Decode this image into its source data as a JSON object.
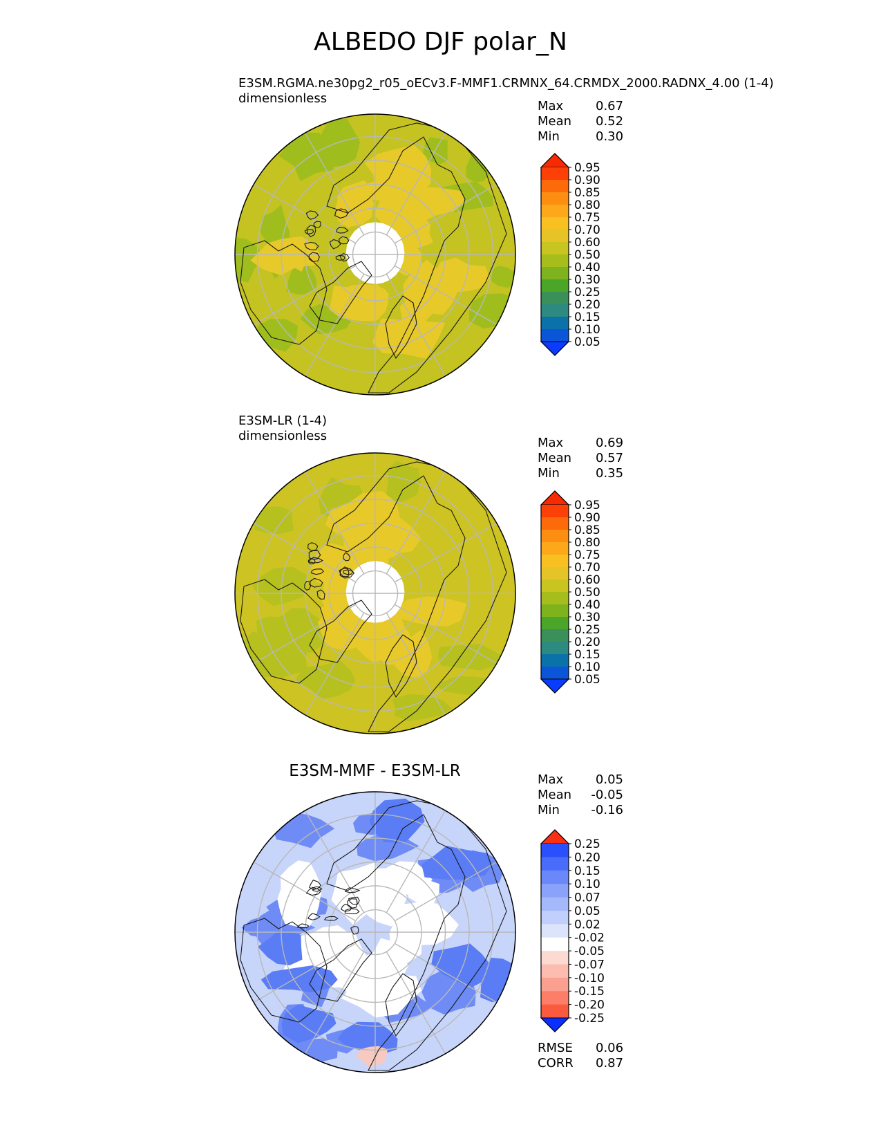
{
  "figure": {
    "title": "ALBEDO DJF polar_N"
  },
  "panels": [
    {
      "id": "test",
      "title_line1": "E3SM.RGMA.ne30pg2_r05_oECv3.F-MMF1.CRMNX_64.CRMDX_2000.RADNX_4.00 (1-4)",
      "title_line2": "dimensionless",
      "stats": {
        "max_label": "Max",
        "max_value": "0.67",
        "mean_label": "Mean",
        "mean_value": "0.52",
        "min_label": "Min",
        "min_value": "0.30"
      }
    },
    {
      "id": "reference",
      "title_line1": "E3SM-LR (1-4)",
      "title_line2": "dimensionless",
      "stats": {
        "max_label": "Max",
        "max_value": "0.69",
        "mean_label": "Mean",
        "mean_value": "0.57",
        "min_label": "Min",
        "min_value": "0.35"
      }
    },
    {
      "id": "difference",
      "title": "E3SM-MMF - E3SM-LR",
      "stats": {
        "max_label": "Max",
        "max_value": "0.05",
        "mean_label": "Mean",
        "mean_value": "-0.05",
        "min_label": "Min",
        "min_value": "-0.16"
      },
      "metrics": {
        "rmse_label": "RMSE",
        "rmse_value": "0.06",
        "corr_label": "CORR",
        "corr_value": "0.87"
      }
    }
  ],
  "chart_data": [
    {
      "type": "heatmap",
      "projection": "north-polar-stereographic",
      "variable": "ALBEDO",
      "units": "dimensionless",
      "season": "DJF",
      "colorbar_levels": [
        "0.05",
        "0.10",
        "0.15",
        "0.20",
        "0.25",
        "0.30",
        "0.40",
        "0.50",
        "0.60",
        "0.70",
        "0.75",
        "0.80",
        "0.85",
        "0.90",
        "0.95"
      ],
      "colorbar_colors": [
        "#0a3cff",
        "#0a55d8",
        "#0a72a8",
        "#2d8a80",
        "#3a9058",
        "#4aa528",
        "#7fb31e",
        "#a7bd1c",
        "#c8c420",
        "#e6c428",
        "#f8c020",
        "#fca81a",
        "#fc8e12",
        "#fc6a0a",
        "#fc4006",
        "#f82a02"
      ],
      "min_color": "#0a3cff",
      "max_color": "#f82a02",
      "field_color_low": "#9fbe1e",
      "field_color_mid": "#c4c321",
      "field_color_high": "#e8c92a"
    },
    {
      "type": "heatmap",
      "projection": "north-polar-stereographic",
      "variable": "ALBEDO",
      "units": "dimensionless",
      "season": "DJF",
      "colorbar_levels": [
        "0.05",
        "0.10",
        "0.15",
        "0.20",
        "0.25",
        "0.30",
        "0.40",
        "0.50",
        "0.60",
        "0.70",
        "0.75",
        "0.80",
        "0.85",
        "0.90",
        "0.95"
      ],
      "colorbar_colors": [
        "#0a3cff",
        "#0a55d8",
        "#0a72a8",
        "#2d8a80",
        "#3a9058",
        "#4aa528",
        "#7fb31e",
        "#a7bd1c",
        "#c8c420",
        "#e6c428",
        "#f8c020",
        "#fca81a",
        "#fc8e12",
        "#fc6a0a",
        "#fc4006",
        "#f82a02"
      ],
      "min_color": "#0a3cff",
      "max_color": "#f82a02",
      "field_color_low": "#b6c11f",
      "field_color_mid": "#cdc423",
      "field_color_high": "#e8c92a"
    },
    {
      "type": "heatmap",
      "projection": "north-polar-stereographic",
      "variable": "ALBEDO difference",
      "units": "dimensionless",
      "season": "DJF",
      "colorbar_levels": [
        "0.25",
        "0.20",
        "0.15",
        "0.10",
        "0.07",
        "0.05",
        "0.02",
        "-0.02",
        "-0.05",
        "-0.07",
        "-0.10",
        "-0.15",
        "-0.20",
        "-0.25"
      ],
      "colorbar_colors": [
        "#fb3010",
        "#fc5a3c",
        "#fc7e68",
        "#fba090",
        "#fcbcb0",
        "#fcdad2",
        "#ffffff",
        "#dce4fc",
        "#c0cffc",
        "#a5b8fa",
        "#8aa2fa",
        "#6a88fa",
        "#4a6cfa",
        "#2a4ffc",
        "#0a30ff"
      ],
      "min_color": "#0a30ff",
      "max_color": "#fb3010",
      "field_color_low": "#6f8cf6",
      "field_color_mid": "#c8d5fa",
      "field_color_high": "#ffffff"
    }
  ]
}
